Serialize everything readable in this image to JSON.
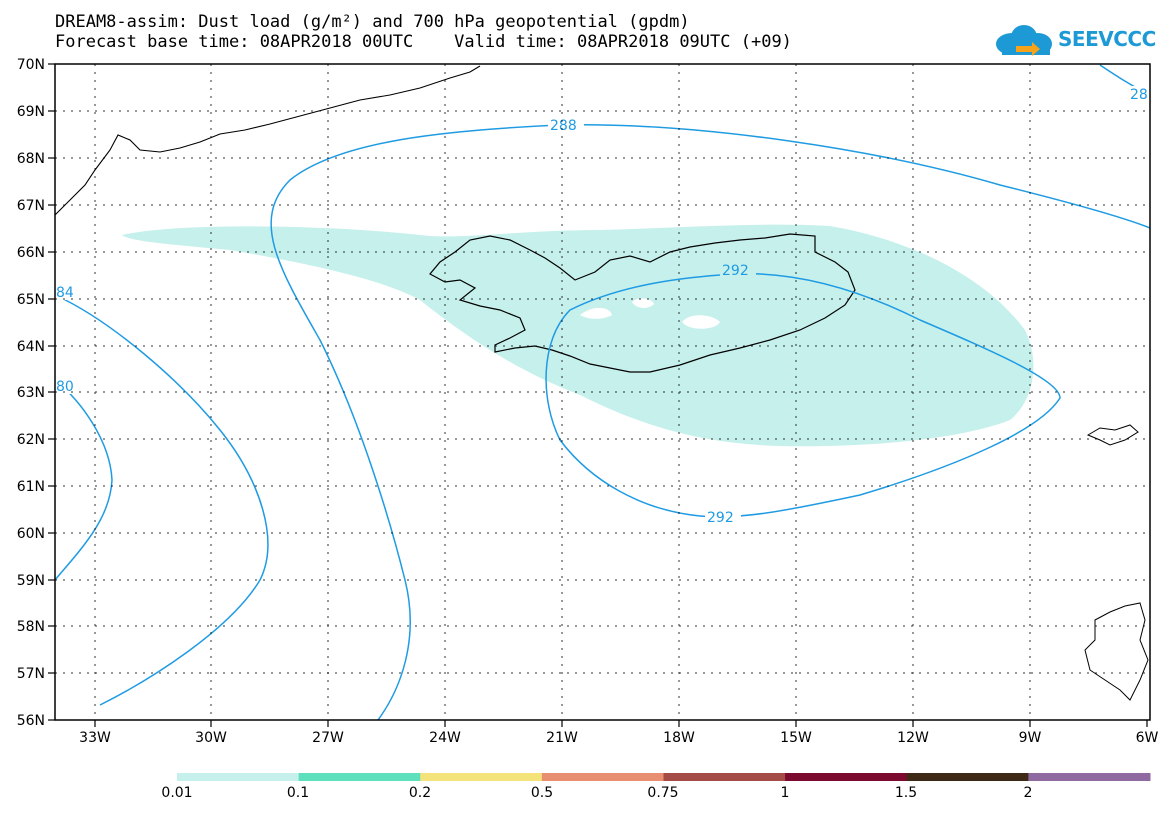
{
  "header": {
    "title_line1": "DREAM8-assim: Dust load (g/m²) and 700 hPa geopotential (gpdm)",
    "title_line2": "Forecast base time: 08APR2018 00UTC    Valid time: 08APR2018 09UTC (+09)",
    "logo_text": "SEEVCCC",
    "logo_color": "#1d9ad6"
  },
  "map": {
    "lon_range": [
      -35,
      -6
    ],
    "lat_range": [
      56,
      70
    ],
    "lon_ticks": [
      "33W",
      "30W",
      "27W",
      "24W",
      "21W",
      "18W",
      "15W",
      "12W",
      "9W",
      "6W"
    ],
    "lat_ticks": [
      "70N",
      "69N",
      "68N",
      "67N",
      "66N",
      "65N",
      "64N",
      "63N",
      "62N",
      "61N",
      "60N",
      "59N",
      "58N",
      "57N",
      "56N"
    ],
    "contour_color": "#1e9be3",
    "contour_labels": [
      "288",
      "292",
      "292",
      "84",
      "80",
      "28"
    ],
    "dust_color": "#c6f0ec"
  },
  "colorbar": {
    "colors": [
      "#c6f0ec",
      "#5fe0bd",
      "#f4e37a",
      "#e78f70",
      "#a54c46",
      "#7b0a2e",
      "#3d2915",
      "#8e6aa0"
    ],
    "labels": [
      "0.01",
      "0.1",
      "0.2",
      "0.5",
      "0.75",
      "1",
      "1.5",
      "2"
    ]
  }
}
